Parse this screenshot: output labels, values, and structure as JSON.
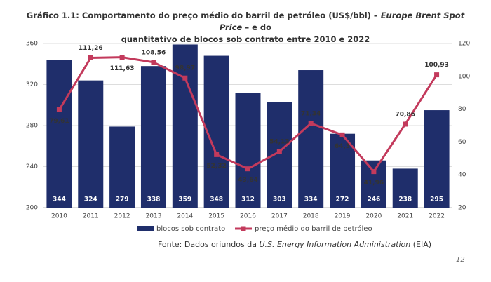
{
  "chart_data": {
    "type": "bar-line",
    "title": [
      "Gráfico 1.1: Comportamento do preço médio do barril de petróleo (US$/bbl) –",
      "Europe Brent Spot Price",
      "– e do",
      "quantitativo de blocos sob contrato entre 2010 e 2022"
    ],
    "categories": [
      "2010",
      "2011",
      "2012",
      "2013",
      "2014",
      "2015",
      "2016",
      "2017",
      "2018",
      "2019",
      "2020",
      "2021",
      "2022"
    ],
    "series": [
      {
        "name": "blocos sob contrato",
        "type": "bar",
        "color": "#1f2e6b",
        "values": [
          344,
          324,
          279,
          338,
          359,
          348,
          312,
          303,
          334,
          272,
          246,
          238,
          295
        ]
      },
      {
        "name": "preço médio do barril de petróleo",
        "type": "line",
        "axis": "y2",
        "color": "#c33a5c",
        "values": [
          79.61,
          111.26,
          111.63,
          108.56,
          98.97,
          52.32,
          43.64,
          54.13,
          71.34,
          64.3,
          41.96,
          70.86,
          100.93
        ],
        "value_labels": [
          "79,61",
          "111,26",
          "111,63",
          "108,56",
          "98,97",
          "52,32",
          "43,64",
          "54,13",
          "71,34",
          "64,3",
          "41,96",
          "70,86",
          "100,93"
        ]
      }
    ],
    "ylim": [
      200,
      360
    ],
    "yticks": [
      200,
      240,
      280,
      320,
      360
    ],
    "y2lim": [
      20,
      120
    ],
    "y2ticks": [
      20,
      40,
      60,
      80,
      100,
      120
    ],
    "grid": true,
    "source": [
      "Fonte: Dados oriundos da",
      "U.S. Energy Information Administration",
      "(EIA)"
    ],
    "page_number": "12"
  }
}
